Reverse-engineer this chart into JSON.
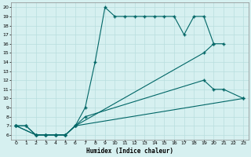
{
  "xlabel": "Humidex (Indice chaleur)",
  "bg_color": "#d6f0f0",
  "line_color": "#006666",
  "grid_color": "#b8dede",
  "xlim": [
    -0.5,
    23.5
  ],
  "ylim": [
    5.5,
    20.5
  ],
  "xticks": [
    0,
    1,
    2,
    3,
    4,
    5,
    6,
    7,
    8,
    9,
    10,
    11,
    12,
    13,
    14,
    15,
    16,
    17,
    18,
    19,
    20,
    21,
    22,
    23
  ],
  "yticks": [
    6,
    7,
    8,
    9,
    10,
    11,
    12,
    13,
    14,
    15,
    16,
    17,
    18,
    19,
    20
  ],
  "line1_x": [
    0,
    1,
    2,
    3,
    4,
    5,
    6,
    7,
    8,
    9,
    10,
    11,
    12,
    13,
    14,
    15,
    16,
    17,
    18,
    19,
    20,
    21
  ],
  "line1_y": [
    7,
    7,
    6,
    6,
    6,
    6,
    7,
    9,
    14,
    20,
    19,
    19,
    19,
    19,
    19,
    19,
    19,
    17,
    19,
    19,
    16,
    16
  ],
  "line2_x": [
    0,
    1,
    2,
    3,
    4,
    5,
    6,
    7,
    19,
    20,
    21,
    23
  ],
  "line2_y": [
    7,
    7,
    6,
    6,
    6,
    6,
    7,
    8,
    12,
    11,
    11,
    10
  ],
  "line3_x": [
    0,
    2,
    3,
    4,
    5,
    6,
    19,
    20
  ],
  "line3_y": [
    7,
    6,
    6,
    6,
    6,
    7,
    15,
    16
  ],
  "line4_x": [
    0,
    2,
    3,
    4,
    5,
    6,
    23
  ],
  "line4_y": [
    7,
    6,
    6,
    6,
    6,
    7,
    10
  ]
}
